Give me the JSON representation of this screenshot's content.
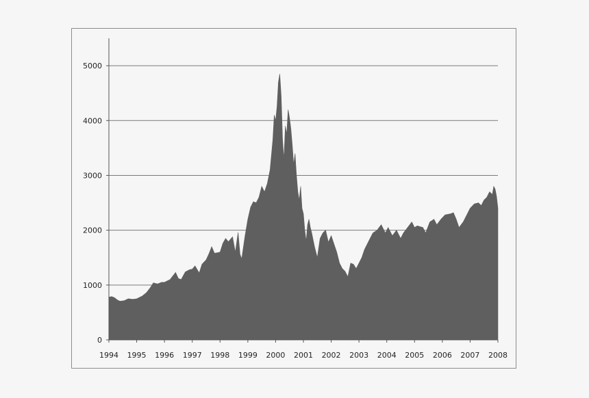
{
  "chart_data": {
    "type": "area",
    "title": "",
    "xlabel": "",
    "ylabel": "",
    "xlim": [
      1994,
      2008
    ],
    "ylim": [
      0,
      5500
    ],
    "yticks": [
      0,
      1000,
      2000,
      3000,
      4000,
      5000
    ],
    "xticks": [
      1994,
      1995,
      1996,
      1997,
      1998,
      1999,
      2000,
      2001,
      2002,
      2003,
      2004,
      2005,
      2006,
      2007,
      2008
    ],
    "grid": "horizontal",
    "legend": "none",
    "color": "#5f5f5f",
    "series": [
      {
        "x": [
          1994.0,
          1994.1,
          1994.2,
          1994.3,
          1994.4,
          1994.55,
          1994.7,
          1994.85,
          1995.0,
          1995.2,
          1995.35,
          1995.5,
          1995.6,
          1995.75,
          1995.9,
          1996.0,
          1996.2,
          1996.4,
          1996.5,
          1996.6,
          1996.75,
          1996.9,
          1997.0,
          1997.1,
          1997.25,
          1997.35,
          1997.5,
          1997.6,
          1997.7,
          1997.8,
          1997.9,
          1998.0,
          1998.1,
          1998.2,
          1998.3,
          1998.45,
          1998.55,
          1998.65,
          1998.72,
          1998.78,
          1998.9,
          1999.0,
          1999.1,
          1999.2,
          1999.3,
          1999.4,
          1999.5,
          1999.6,
          1999.7,
          1999.8,
          1999.9,
          1999.95,
          2000.0,
          2000.05,
          2000.1,
          2000.15,
          2000.2,
          2000.25,
          2000.3,
          2000.35,
          2000.4,
          2000.45,
          2000.5,
          2000.55,
          2000.6,
          2000.65,
          2000.7,
          2000.75,
          2000.8,
          2000.85,
          2000.9,
          2000.95,
          2001.0,
          2001.05,
          2001.1,
          2001.15,
          2001.2,
          2001.25,
          2001.3,
          2001.4,
          2001.5,
          2001.6,
          2001.7,
          2001.8,
          2001.9,
          2002.0,
          2002.1,
          2002.2,
          2002.3,
          2002.4,
          2002.5,
          2002.6,
          2002.7,
          2002.8,
          2002.9,
          2003.0,
          2003.1,
          2003.2,
          2003.35,
          2003.5,
          2003.65,
          2003.8,
          2003.95,
          2004.05,
          2004.2,
          2004.35,
          2004.5,
          2004.6,
          2004.75,
          2004.9,
          2005.0,
          2005.1,
          2005.3,
          2005.4,
          2005.55,
          2005.7,
          2005.8,
          2005.95,
          2006.1,
          2006.3,
          2006.4,
          2006.5,
          2006.6,
          2006.75,
          2006.9,
          2007.0,
          2007.15,
          2007.3,
          2007.4,
          2007.5,
          2007.6,
          2007.7,
          2007.8,
          2007.85,
          2007.9,
          2007.95,
          2008.0
        ],
        "y": [
          780,
          790,
          770,
          730,
          705,
          715,
          750,
          740,
          750,
          800,
          860,
          960,
          1040,
          1020,
          1050,
          1050,
          1100,
          1230,
          1120,
          1100,
          1240,
          1280,
          1290,
          1350,
          1220,
          1380,
          1460,
          1570,
          1700,
          1580,
          1590,
          1600,
          1760,
          1850,
          1790,
          1880,
          1600,
          1960,
          1560,
          1480,
          1900,
          2200,
          2420,
          2520,
          2500,
          2600,
          2800,
          2700,
          2850,
          3100,
          3650,
          4100,
          4000,
          4250,
          4700,
          4850,
          4450,
          3650,
          3300,
          3900,
          3750,
          4200,
          4050,
          3850,
          3550,
          3200,
          3400,
          3000,
          2700,
          2550,
          2800,
          2400,
          2300,
          2000,
          1800,
          2100,
          2200,
          2050,
          1950,
          1700,
          1500,
          1850,
          1950,
          2000,
          1780,
          1900,
          1750,
          1600,
          1400,
          1300,
          1250,
          1150,
          1400,
          1380,
          1300,
          1400,
          1500,
          1650,
          1800,
          1950,
          2000,
          2100,
          1950,
          2050,
          1900,
          2000,
          1850,
          1950,
          2050,
          2150,
          2050,
          2080,
          2050,
          1950,
          2150,
          2200,
          2100,
          2200,
          2280,
          2300,
          2320,
          2200,
          2050,
          2150,
          2300,
          2400,
          2480,
          2500,
          2450,
          2550,
          2600,
          2700,
          2650,
          2800,
          2750,
          2620,
          2400
        ]
      }
    ]
  }
}
